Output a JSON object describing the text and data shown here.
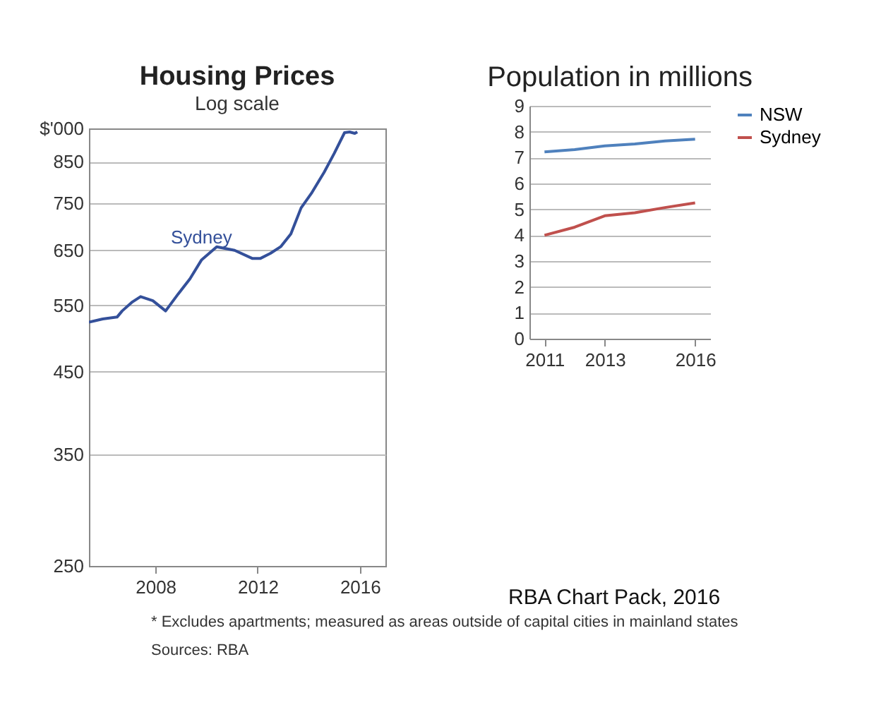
{
  "chart_data": [
    {
      "type": "line",
      "title": "Housing Prices",
      "subtitle": "Log scale",
      "log": true,
      "grid": "y",
      "x": [
        2005.4,
        2005.94,
        2006.5,
        2006.7,
        2007.1,
        2007.42,
        2007.9,
        2008.4,
        2008.9,
        2009.35,
        2009.8,
        2010.4,
        2011.1,
        2011.8,
        2012.1,
        2012.5,
        2012.9,
        2013.3,
        2013.7,
        2014.1,
        2014.6,
        2015.0,
        2015.4,
        2015.6,
        2015.8,
        2015.9
      ],
      "series": [
        {
          "name": "Sydney",
          "color": "#34509a",
          "values": [
            523,
            528,
            531,
            541,
            556,
            565,
            558,
            541,
            570,
            596,
            631,
            657,
            650,
            634,
            634,
            644,
            657,
            683,
            739,
            772,
            823,
            872,
            928,
            930,
            926,
            930
          ]
        }
      ],
      "xlim": [
        2005.4,
        2017
      ],
      "xticks": [
        2008,
        2012,
        2016
      ],
      "ylabel": "$'000",
      "ylim": [
        250,
        940
      ],
      "yticks": [
        250,
        350,
        450,
        550,
        650,
        750,
        850
      ],
      "annotations": [
        "*     Excludes apartments; measured as areas outside of capital cities in mainland states",
        "Sources:  RBA"
      ]
    },
    {
      "type": "line",
      "title": "Population in millions",
      "grid": "y",
      "legend": "right",
      "x": [
        2011,
        2012,
        2013,
        2014,
        2015,
        2016
      ],
      "series": [
        {
          "name": "NSW",
          "color": "#4f81bd",
          "values": [
            7.22,
            7.31,
            7.45,
            7.53,
            7.64,
            7.71
          ]
        },
        {
          "name": "Sydney",
          "color": "#c0504d",
          "values": [
            4.0,
            4.31,
            4.75,
            4.87,
            5.07,
            5.25
          ]
        }
      ],
      "xlim": [
        2010.5,
        2016.5
      ],
      "xticks": [
        2011,
        2013,
        2016
      ],
      "ylim": [
        0,
        9
      ],
      "yticks": [
        0,
        1,
        2,
        3,
        4,
        5,
        6,
        7,
        8,
        9
      ],
      "annotations": [
        "RBA Chart Pack, 2016"
      ]
    }
  ]
}
